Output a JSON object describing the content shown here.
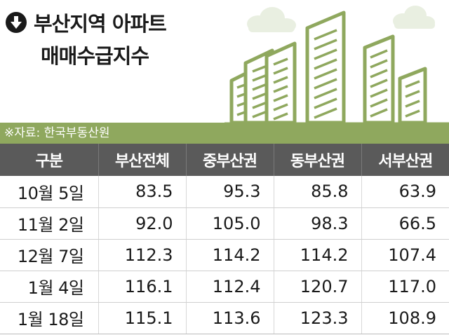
{
  "chart_data": {
    "type": "table",
    "title": "부산지역 아파트",
    "subtitle": "매매수급지수",
    "source": "※자료: 한국부동산원",
    "columns": [
      "구분",
      "부산전체",
      "중부산권",
      "동부산권",
      "서부산권"
    ],
    "rows": [
      {
        "label": "10월  5일",
        "values": [
          "83.5",
          "95.3",
          "85.8",
          "63.9"
        ]
      },
      {
        "label": "11월  2일",
        "values": [
          "92.0",
          "105.0",
          "98.3",
          "66.5"
        ]
      },
      {
        "label": "12월  7일",
        "values": [
          "112.3",
          "114.2",
          "114.2",
          "107.4"
        ]
      },
      {
        "label": "1월  4일",
        "values": [
          "116.1",
          "112.4",
          "120.7",
          "117.0"
        ]
      },
      {
        "label": "1월 18일",
        "values": [
          "115.1",
          "113.6",
          "123.3",
          "108.9"
        ]
      }
    ]
  },
  "colors": {
    "accent": "#8fa85e",
    "header_bg": "#5a5a5a",
    "building_stroke": "#8fa85e",
    "cloud": "#e8eee0"
  },
  "icons": {
    "title_icon": "down-arrow-circle-icon"
  }
}
